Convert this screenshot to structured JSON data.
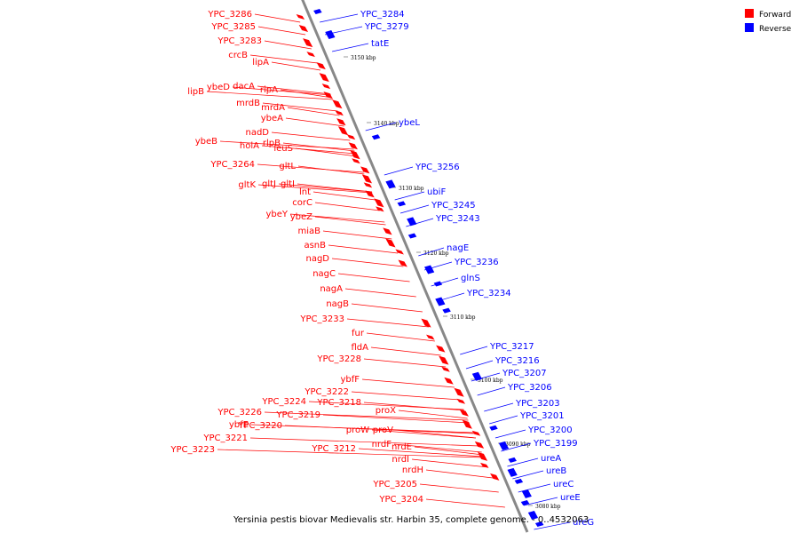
{
  "caption": "Yersinia pestis biovar Medievalis str. Harbin 35, complete genome. - 0..4532063",
  "legend": [
    {
      "label": "Forward",
      "color": "#ff0000"
    },
    {
      "label": "Reverse",
      "color": "#0000ff"
    }
  ],
  "colors": {
    "forward": "#ff0000",
    "reverse": "#0000ff",
    "axis": "#888888"
  },
  "ticks": [
    "3150 kbp",
    "3140 kbp",
    "3130 kbp",
    "3120 kbp",
    "3110 kbp",
    "3100 kbp",
    "3090 kbp",
    "3080 kbp"
  ],
  "forward_labels": [
    "YPC_3286",
    "YPC_3285",
    "YPC_3283",
    "crcB",
    "lipA",
    "lipB",
    "ybeD",
    "dacA",
    "rlpA",
    "mrdB",
    "mrdA",
    "ybeA",
    "nadD",
    "ybeB",
    "holA",
    "rlpB",
    "leuS",
    "YPC_3264",
    "gltL",
    "gltK",
    "gltJ",
    "gltI",
    "lnt",
    "corC",
    "ybeY",
    "ybeZ",
    "miaB",
    "asnB",
    "nagD",
    "nagC",
    "nagA",
    "nagB",
    "YPC_3233",
    "fur",
    "fldA",
    "YPC_3228",
    "ybfF",
    "YPC_3222",
    "YPC_3224",
    "YPC_3218",
    "YPC_3226",
    "YPC_3219",
    "ybfE",
    "YPC_3220",
    "YPC_3221",
    "YPC_3223",
    "proX",
    "proW",
    "proV",
    "YPC_3212",
    "nrdF",
    "nrdE",
    "nrdI",
    "nrdH",
    "YPC_3205",
    "YPC_3204"
  ],
  "reverse_labels": [
    "YPC_3284",
    "YPC_3279",
    "tatE",
    "ybeL",
    "YPC_3256",
    "ubiF",
    "YPC_3245",
    "YPC_3243",
    "nagE",
    "YPC_3236",
    "glnS",
    "YPC_3234",
    "YPC_3217",
    "YPC_3216",
    "YPC_3207",
    "YPC_3206",
    "YPC_3203",
    "YPC_3201",
    "YPC_3200",
    "YPC_3199",
    "ureA",
    "ureB",
    "ureC",
    "ureE",
    "ureG"
  ]
}
